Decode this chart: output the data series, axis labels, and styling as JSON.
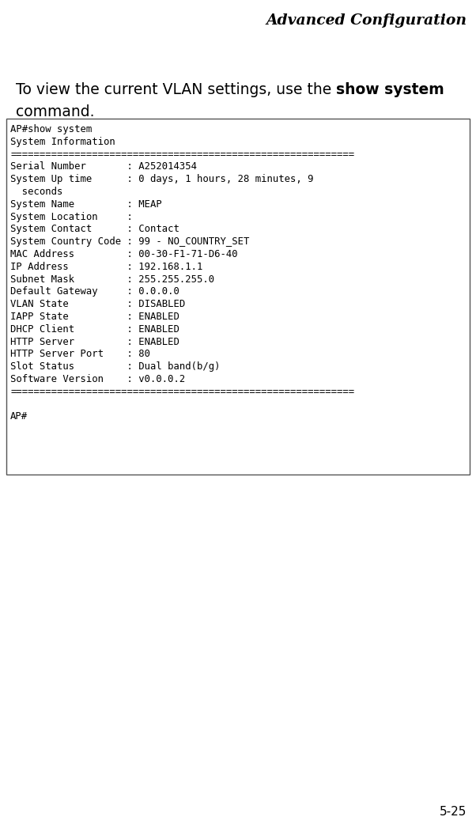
{
  "title": "Advanced Configuration",
  "page_number": "5-25",
  "intro_normal": "To view the current VLAN settings, use the ",
  "intro_bold": "show system",
  "intro_line2": "command.",
  "terminal_text": "AP#show system\nSystem Information\n===========================================================\nSerial Number       : A252014354\nSystem Up time      : 0 days, 1 hours, 28 minutes, 9\n  seconds\nSystem Name         : MEAP\nSystem Location     :\nSystem Contact      : Contact\nSystem Country Code : 99 - NO_COUNTRY_SET\nMAC Address         : 00-30-F1-71-D6-40\nIP Address          : 192.168.1.1\nSubnet Mask         : 255.255.255.0\nDefault Gateway     : 0.0.0.0\nVLAN State          : DISABLED\nIAPP State          : ENABLED\nDHCP Client         : ENABLED\nHTTP Server         : ENABLED\nHTTP Server Port    : 80\nSlot Status         : Dual band(b/g)\nSoftware Version    : v0.0.0.2\n===========================================================\n\nAP#",
  "bg_color": "#ffffff",
  "box_bg": "#ffffff",
  "box_border": "#555555",
  "title_fontsize": 13.5,
  "intro_fontsize": 13.5,
  "terminal_fontsize": 8.8,
  "page_num_fontsize": 11
}
